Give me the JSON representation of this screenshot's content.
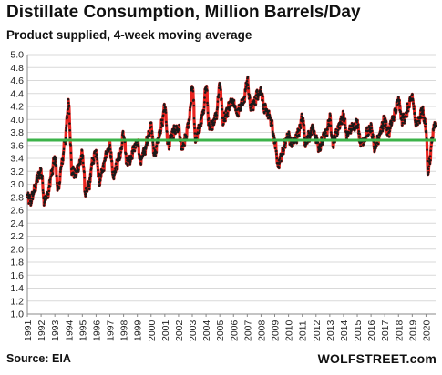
{
  "chart_data": {
    "type": "line",
    "title": "Distillate Consumption, Million Barrels/Day",
    "subtitle": "Product supplied, 4-week moving average",
    "source": "Source: EIA",
    "brand": "WOLFSTREET.com",
    "ylim": [
      1.0,
      5.0
    ],
    "yticks": [
      "1.0",
      "1.2",
      "1.4",
      "1.6",
      "1.8",
      "2.0",
      "2.2",
      "2.4",
      "2.6",
      "2.8",
      "3.0",
      "3.2",
      "3.4",
      "3.6",
      "3.8",
      "4.0",
      "4.2",
      "4.4",
      "4.6",
      "4.8",
      "5.0"
    ],
    "xticks": [
      "1991",
      "1992",
      "1993",
      "1994",
      "1995",
      "1996",
      "1997",
      "1998",
      "1999",
      "2000",
      "2001",
      "2002",
      "2003",
      "2004",
      "2005",
      "2006",
      "2007",
      "2008",
      "2009",
      "2010",
      "2011",
      "2012",
      "2013",
      "2014",
      "2015",
      "2016",
      "2017",
      "2018",
      "2019",
      "2020"
    ],
    "xlim": [
      1991.0,
      2020.7
    ],
    "reference_line": {
      "value": 3.68
    },
    "series": [
      {
        "color": "#e8231e",
        "marker_color": "#1a1a1a",
        "x": [
          1991.0,
          1991.25,
          1991.5,
          1991.75,
          1992.0,
          1992.25,
          1992.5,
          1992.75,
          1993.0,
          1993.25,
          1993.5,
          1993.75,
          1994.0,
          1994.25,
          1994.5,
          1994.75,
          1995.0,
          1995.25,
          1995.5,
          1995.75,
          1996.0,
          1996.25,
          1996.5,
          1996.75,
          1997.0,
          1997.25,
          1997.5,
          1997.75,
          1998.0,
          1998.25,
          1998.5,
          1998.75,
          1999.0,
          1999.25,
          1999.5,
          1999.75,
          2000.0,
          2000.25,
          2000.5,
          2000.75,
          2001.0,
          2001.25,
          2001.5,
          2001.75,
          2002.0,
          2002.25,
          2002.5,
          2002.75,
          2003.0,
          2003.25,
          2003.5,
          2003.75,
          2004.0,
          2004.25,
          2004.5,
          2004.75,
          2005.0,
          2005.25,
          2005.5,
          2005.75,
          2006.0,
          2006.25,
          2006.5,
          2006.75,
          2007.0,
          2007.25,
          2007.5,
          2007.75,
          2008.0,
          2008.25,
          2008.5,
          2008.75,
          2009.0,
          2009.25,
          2009.5,
          2009.75,
          2010.0,
          2010.25,
          2010.5,
          2010.75,
          2011.0,
          2011.25,
          2011.5,
          2011.75,
          2012.0,
          2012.25,
          2012.5,
          2012.75,
          2013.0,
          2013.25,
          2013.5,
          2013.75,
          2014.0,
          2014.25,
          2014.5,
          2014.75,
          2015.0,
          2015.25,
          2015.5,
          2015.75,
          2016.0,
          2016.25,
          2016.5,
          2016.75,
          2017.0,
          2017.25,
          2017.5,
          2017.75,
          2018.0,
          2018.25,
          2018.5,
          2018.75,
          2019.0,
          2019.25,
          2019.5,
          2019.75,
          2020.0,
          2020.15,
          2020.3,
          2020.45,
          2020.6,
          2020.7
        ],
        "values": [
          2.8,
          2.75,
          2.9,
          3.1,
          3.2,
          2.75,
          2.85,
          3.15,
          3.4,
          2.9,
          3.3,
          3.7,
          4.25,
          3.2,
          3.15,
          3.3,
          3.45,
          2.85,
          3.0,
          3.35,
          3.5,
          3.05,
          3.25,
          3.45,
          3.6,
          3.1,
          3.3,
          3.45,
          3.8,
          3.35,
          3.4,
          3.55,
          3.65,
          3.35,
          3.5,
          3.7,
          3.9,
          3.45,
          3.7,
          3.9,
          4.2,
          3.6,
          3.75,
          3.85,
          3.85,
          3.55,
          3.7,
          3.95,
          4.5,
          3.7,
          3.85,
          4.05,
          4.5,
          3.85,
          3.95,
          4.1,
          4.55,
          4.0,
          4.1,
          4.25,
          4.3,
          4.1,
          4.2,
          4.3,
          4.6,
          4.2,
          4.25,
          4.4,
          4.45,
          4.15,
          4.1,
          3.95,
          3.65,
          3.3,
          3.45,
          3.65,
          3.75,
          3.6,
          3.7,
          3.8,
          4.05,
          3.65,
          3.75,
          3.85,
          3.7,
          3.55,
          3.7,
          3.8,
          4.0,
          3.65,
          3.8,
          3.95,
          4.05,
          3.75,
          3.85,
          3.9,
          3.95,
          3.65,
          3.7,
          3.8,
          3.85,
          3.55,
          3.7,
          3.85,
          4.0,
          3.8,
          3.95,
          4.1,
          4.3,
          4.0,
          4.05,
          4.2,
          4.35,
          3.95,
          4.0,
          4.15,
          3.85,
          3.2,
          3.4,
          3.7,
          3.95,
          3.9
        ]
      }
    ]
  }
}
